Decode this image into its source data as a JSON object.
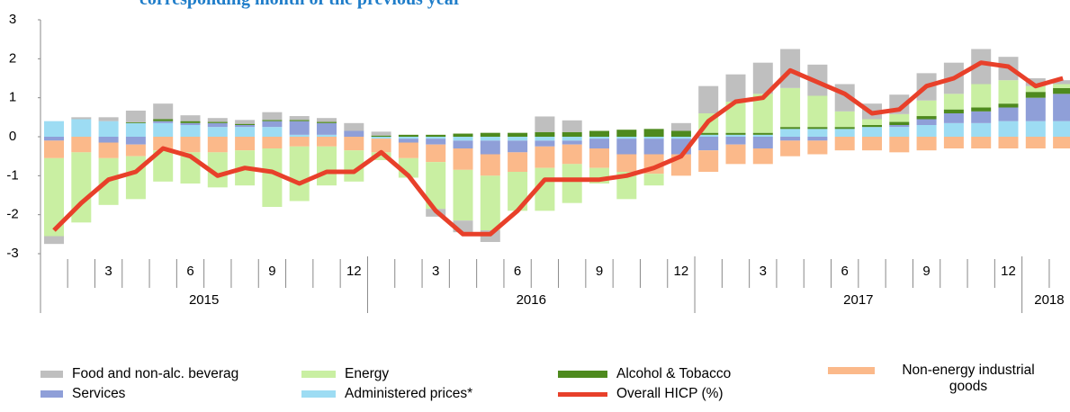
{
  "chart_data": {
    "type": "bar",
    "title": "corresponding month of the previous year",
    "categories": [
      null,
      null,
      "3",
      null,
      null,
      "6",
      null,
      null,
      "9",
      null,
      null,
      "12",
      null,
      null,
      "3",
      null,
      null,
      "6",
      null,
      null,
      "9",
      null,
      null,
      "12",
      null,
      null,
      "3",
      null,
      null,
      "6",
      null,
      null,
      "9",
      null,
      null,
      "12",
      null,
      null
    ],
    "x_groups": [
      {
        "label": "2015",
        "count": 12
      },
      {
        "label": "2016",
        "count": 12
      },
      {
        "label": "2017",
        "count": 12
      },
      {
        "label": "2018",
        "count": 2
      }
    ],
    "ylim": [
      -3,
      3
    ],
    "yticks": [
      3,
      2,
      1,
      0,
      -1,
      -2,
      -3
    ],
    "series": [
      {
        "name": "Administered prices*",
        "color": "#9ddcf3",
        "type": "bar",
        "values": [
          0.4,
          0.45,
          0.4,
          0.35,
          0.35,
          0.3,
          0.25,
          0.25,
          0.25,
          0.05,
          0.05,
          0.0,
          -0.05,
          -0.05,
          -0.05,
          -0.1,
          -0.1,
          -0.1,
          -0.1,
          -0.1,
          -0.05,
          -0.05,
          -0.05,
          -0.05,
          0.05,
          0.05,
          0.05,
          0.2,
          0.2,
          0.2,
          0.25,
          0.25,
          0.3,
          0.35,
          0.35,
          0.4,
          0.4,
          0.4
        ]
      },
      {
        "name": "Services",
        "color": "#8f9fd8",
        "type": "bar",
        "values": [
          -0.1,
          0,
          -0.15,
          -0.2,
          0.05,
          0.05,
          0.1,
          0.05,
          0.15,
          0.35,
          0.3,
          0.15,
          0,
          -0.1,
          -0.15,
          -0.2,
          -0.35,
          -0.3,
          -0.15,
          -0.1,
          -0.25,
          -0.4,
          -0.4,
          -0.4,
          -0.35,
          -0.2,
          -0.3,
          -0.1,
          -0.1,
          0,
          0,
          0.05,
          0.15,
          0.25,
          0.3,
          0.35,
          0.6,
          0.7
        ]
      },
      {
        "name": "Alcohol & Tobacco",
        "color": "#4e8a1e",
        "type": "bar",
        "values": [
          0,
          0,
          0,
          0.02,
          0.05,
          0.05,
          0.03,
          0.03,
          0.03,
          0.03,
          0.03,
          0,
          0.03,
          0.05,
          0.05,
          0.08,
          0.1,
          0.1,
          0.12,
          0.12,
          0.15,
          0.18,
          0.2,
          0.15,
          0.05,
          0.05,
          0.05,
          0.05,
          0.05,
          0.05,
          0.05,
          0.08,
          0.08,
          0.1,
          0.1,
          0.1,
          0.15,
          0.15
        ]
      },
      {
        "name": "Non-energy industrial goods",
        "color": "#fbb98a",
        "type": "bar",
        "values": [
          -0.45,
          -0.4,
          -0.4,
          -0.3,
          -0.35,
          -0.4,
          -0.4,
          -0.35,
          -0.3,
          -0.25,
          -0.25,
          -0.35,
          -0.35,
          -0.4,
          -0.45,
          -0.55,
          -0.55,
          -0.5,
          -0.55,
          -0.5,
          -0.5,
          -0.45,
          -0.5,
          -0.55,
          -0.55,
          -0.5,
          -0.4,
          -0.4,
          -0.35,
          -0.35,
          -0.35,
          -0.4,
          -0.35,
          -0.3,
          -0.3,
          -0.3,
          -0.3,
          -0.3
        ]
      },
      {
        "name": "Energy",
        "color": "#c9efa2",
        "type": "bar",
        "values": [
          -2.0,
          -1.8,
          -1.2,
          -1.1,
          -0.8,
          -0.8,
          -0.9,
          -0.9,
          -1.5,
          -1.4,
          -1.0,
          -0.8,
          -0.2,
          -0.5,
          -1.2,
          -1.3,
          -1.4,
          -1.0,
          -1.1,
          -1.0,
          -0.4,
          -0.7,
          -0.3,
          0,
          0.5,
          0.8,
          1.0,
          1.0,
          0.8,
          0.4,
          0.15,
          0.2,
          0.4,
          0.4,
          0.6,
          0.6,
          0.15,
          0.1
        ]
      },
      {
        "name": "Food and non-alc. beverag",
        "color": "#bfbfbf",
        "type": "bar",
        "values": [
          -0.2,
          0.05,
          0.1,
          0.3,
          0.4,
          0.15,
          0.1,
          0.1,
          0.2,
          0.1,
          0.1,
          0.2,
          0.1,
          0,
          -0.2,
          -0.3,
          -0.3,
          0,
          0.4,
          0.3,
          0,
          0,
          0,
          0.2,
          0.7,
          0.7,
          0.8,
          1.0,
          0.8,
          0.7,
          0.4,
          0.5,
          0.7,
          0.8,
          0.9,
          0.6,
          0.2,
          0.1
        ]
      },
      {
        "name": "Overall HICP (%)",
        "color": "#e8402a",
        "type": "line",
        "values": [
          -2.4,
          -1.7,
          -1.1,
          -0.9,
          -0.3,
          -0.5,
          -1.0,
          -0.8,
          -0.9,
          -1.2,
          -0.9,
          -0.9,
          -0.4,
          -1.0,
          -1.9,
          -2.5,
          -2.5,
          -1.9,
          -1.1,
          -1.1,
          -1.1,
          -1.0,
          -0.8,
          -0.5,
          0.4,
          0.9,
          1.0,
          1.7,
          1.4,
          1.1,
          0.6,
          0.7,
          1.3,
          1.5,
          1.9,
          1.8,
          1.3,
          1.5
        ]
      }
    ],
    "legend_order": [
      5,
      4,
      2,
      3,
      1,
      0,
      6
    ]
  }
}
